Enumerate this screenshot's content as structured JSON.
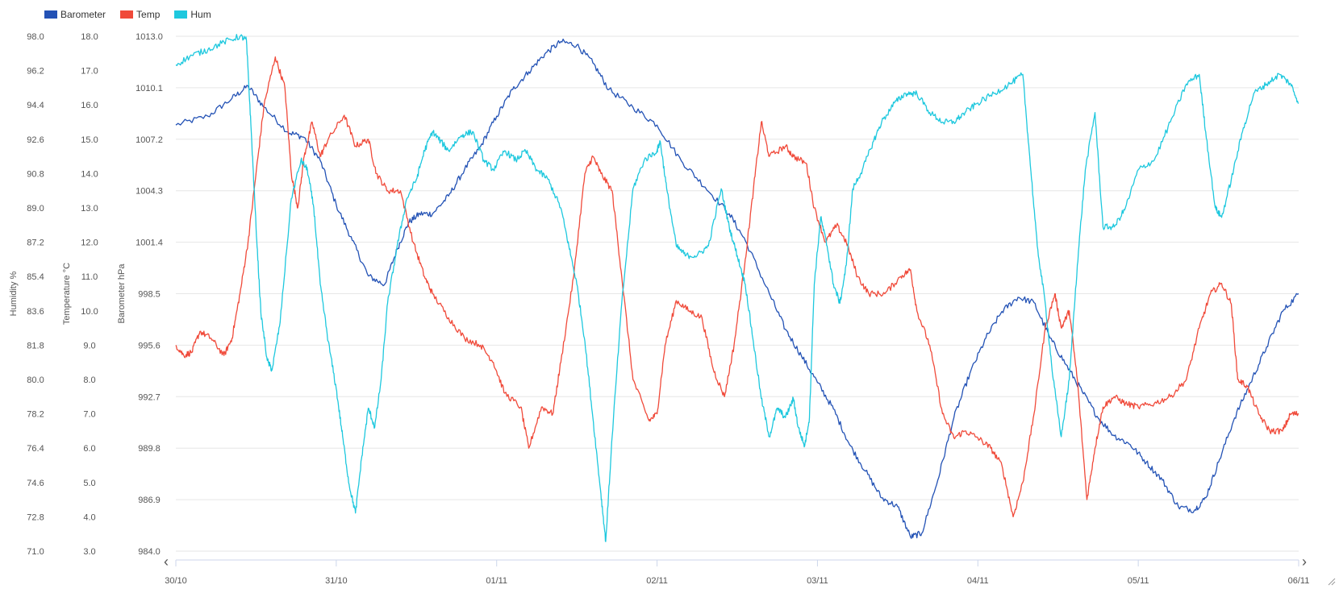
{
  "legend": [
    {
      "name": "Barometer",
      "color": "#2352b5"
    },
    {
      "name": "Temp",
      "color": "#f04a3a"
    },
    {
      "name": "Hum",
      "color": "#1ec8de"
    }
  ],
  "nav": {
    "prev_icon": "‹",
    "next_icon": "›"
  },
  "chart_data": {
    "type": "line",
    "legend_position": "top-left",
    "grid": true,
    "x_ticks": [
      "30/10",
      "31/10",
      "01/11",
      "02/11",
      "03/11",
      "04/11",
      "05/11",
      "06/11"
    ],
    "x_range_days": [
      0,
      7
    ],
    "axes": {
      "barometer": {
        "label": "Barometer hPa",
        "range": [
          984.0,
          1013.0
        ],
        "ticks": [
          "1013.0",
          "1010.1",
          "1007.2",
          "1004.3",
          "1001.4",
          "998.5",
          "995.6",
          "992.7",
          "989.8",
          "986.9",
          "984.0"
        ]
      },
      "temp": {
        "label": "Temperature °C",
        "range": [
          3.0,
          18.0
        ],
        "ticks": [
          "18.0",
          "17.0",
          "16.0",
          "15.0",
          "14.0",
          "13.0",
          "12.0",
          "11.0",
          "10.0",
          "9.0",
          "8.0",
          "7.0",
          "6.0",
          "5.0",
          "4.0",
          "3.0"
        ]
      },
      "hum": {
        "label": "Humidity %",
        "range": [
          71.0,
          98.0
        ],
        "ticks": [
          "98.0",
          "96.2",
          "94.4",
          "92.6",
          "90.8",
          "89.0",
          "87.2",
          "85.4",
          "83.6",
          "81.8",
          "80.0",
          "78.2",
          "76.4",
          "74.6",
          "72.8",
          "71.0"
        ]
      }
    },
    "series": [
      {
        "name": "Barometer",
        "axis": "barometer",
        "color": "#2352b5",
        "points": [
          [
            0,
            1008.0
          ],
          [
            0.2,
            1008.5
          ],
          [
            0.35,
            1009.5
          ],
          [
            0.45,
            1010.2
          ],
          [
            0.55,
            1009.0
          ],
          [
            0.7,
            1007.6
          ],
          [
            0.8,
            1007.3
          ],
          [
            0.9,
            1006.0
          ],
          [
            1.0,
            1003.5
          ],
          [
            1.1,
            1001.5
          ],
          [
            1.2,
            999.5
          ],
          [
            1.3,
            999.0
          ],
          [
            1.38,
            1001.0
          ],
          [
            1.45,
            1002.5
          ],
          [
            1.52,
            1003.0
          ],
          [
            1.6,
            1003.0
          ],
          [
            1.7,
            1004.0
          ],
          [
            1.8,
            1005.5
          ],
          [
            1.9,
            1006.8
          ],
          [
            2.0,
            1008.5
          ],
          [
            2.1,
            1010.0
          ],
          [
            2.2,
            1011.0
          ],
          [
            2.3,
            1012.0
          ],
          [
            2.4,
            1012.7
          ],
          [
            2.5,
            1012.5
          ],
          [
            2.6,
            1011.5
          ],
          [
            2.7,
            1010.0
          ],
          [
            2.85,
            1009.0
          ],
          [
            3.0,
            1008.0
          ],
          [
            3.15,
            1006.0
          ],
          [
            3.3,
            1004.5
          ],
          [
            3.45,
            1003.0
          ],
          [
            3.55,
            1001.5
          ],
          [
            3.7,
            998.5
          ],
          [
            3.8,
            996.5
          ],
          [
            3.9,
            995.0
          ],
          [
            4.0,
            993.5
          ],
          [
            4.1,
            992.0
          ],
          [
            4.2,
            990.0
          ],
          [
            4.3,
            988.5
          ],
          [
            4.4,
            987.0
          ],
          [
            4.5,
            986.5
          ],
          [
            4.58,
            984.8
          ],
          [
            4.65,
            985.0
          ],
          [
            4.75,
            988.0
          ],
          [
            4.85,
            991.5
          ],
          [
            4.95,
            994.0
          ],
          [
            5.05,
            996.0
          ],
          [
            5.15,
            997.5
          ],
          [
            5.25,
            998.3
          ],
          [
            5.35,
            998.0
          ],
          [
            5.45,
            996.0
          ],
          [
            5.55,
            994.5
          ],
          [
            5.65,
            993.0
          ],
          [
            5.75,
            991.5
          ],
          [
            5.85,
            990.5
          ],
          [
            5.95,
            990.0
          ],
          [
            6.05,
            989.0
          ],
          [
            6.15,
            988.0
          ],
          [
            6.25,
            986.5
          ],
          [
            6.35,
            986.3
          ],
          [
            6.42,
            987.0
          ],
          [
            6.5,
            989.0
          ],
          [
            6.6,
            991.5
          ],
          [
            6.7,
            993.5
          ],
          [
            6.8,
            995.5
          ],
          [
            6.9,
            997.5
          ],
          [
            7.0,
            998.5
          ]
        ]
      },
      {
        "name": "Temp",
        "axis": "temp",
        "color": "#f04a3a",
        "points": [
          [
            0,
            9.0
          ],
          [
            0.05,
            8.7
          ],
          [
            0.1,
            8.8
          ],
          [
            0.15,
            9.4
          ],
          [
            0.22,
            9.2
          ],
          [
            0.3,
            8.7
          ],
          [
            0.35,
            9.2
          ],
          [
            0.4,
            10.5
          ],
          [
            0.45,
            12.0
          ],
          [
            0.5,
            14.0
          ],
          [
            0.55,
            16.0
          ],
          [
            0.62,
            17.4
          ],
          [
            0.68,
            16.5
          ],
          [
            0.72,
            14.0
          ],
          [
            0.76,
            13.0
          ],
          [
            0.8,
            14.5
          ],
          [
            0.85,
            15.5
          ],
          [
            0.9,
            14.5
          ],
          [
            0.95,
            15.0
          ],
          [
            1.05,
            15.7
          ],
          [
            1.12,
            14.8
          ],
          [
            1.2,
            15.0
          ],
          [
            1.25,
            14.0
          ],
          [
            1.32,
            13.5
          ],
          [
            1.4,
            13.5
          ],
          [
            1.48,
            12.0
          ],
          [
            1.55,
            11.0
          ],
          [
            1.6,
            10.5
          ],
          [
            1.7,
            9.8
          ],
          [
            1.8,
            9.2
          ],
          [
            1.9,
            9.0
          ],
          [
            1.98,
            8.5
          ],
          [
            2.05,
            7.6
          ],
          [
            2.15,
            7.2
          ],
          [
            2.2,
            6.0
          ],
          [
            2.28,
            7.2
          ],
          [
            2.35,
            7.0
          ],
          [
            2.4,
            8.5
          ],
          [
            2.48,
            11.0
          ],
          [
            2.55,
            14.0
          ],
          [
            2.6,
            14.5
          ],
          [
            2.65,
            14.0
          ],
          [
            2.72,
            13.5
          ],
          [
            2.78,
            11.0
          ],
          [
            2.85,
            8.0
          ],
          [
            2.95,
            6.8
          ],
          [
            3.0,
            7.0
          ],
          [
            3.05,
            9.0
          ],
          [
            3.12,
            10.3
          ],
          [
            3.2,
            10.0
          ],
          [
            3.28,
            9.8
          ],
          [
            3.35,
            8.3
          ],
          [
            3.42,
            7.5
          ],
          [
            3.48,
            9.0
          ],
          [
            3.55,
            11.5
          ],
          [
            3.6,
            13.5
          ],
          [
            3.65,
            15.5
          ],
          [
            3.7,
            14.5
          ],
          [
            3.8,
            14.8
          ],
          [
            3.85,
            14.5
          ],
          [
            3.93,
            14.3
          ],
          [
            3.98,
            13.0
          ],
          [
            4.05,
            12.0
          ],
          [
            4.12,
            12.5
          ],
          [
            4.18,
            12.0
          ],
          [
            4.25,
            11.0
          ],
          [
            4.32,
            10.5
          ],
          [
            4.42,
            10.5
          ],
          [
            4.52,
            11.0
          ],
          [
            4.58,
            11.2
          ],
          [
            4.62,
            10.0
          ],
          [
            4.7,
            9.0
          ],
          [
            4.78,
            7.0
          ],
          [
            4.85,
            6.3
          ],
          [
            4.92,
            6.5
          ],
          [
            5.0,
            6.3
          ],
          [
            5.08,
            6.0
          ],
          [
            5.15,
            5.5
          ],
          [
            5.22,
            4.0
          ],
          [
            5.28,
            5.0
          ],
          [
            5.35,
            7.0
          ],
          [
            5.42,
            9.5
          ],
          [
            5.48,
            10.5
          ],
          [
            5.52,
            9.5
          ],
          [
            5.57,
            10.0
          ],
          [
            5.62,
            8.0
          ],
          [
            5.68,
            4.5
          ],
          [
            5.73,
            6.0
          ],
          [
            5.78,
            7.2
          ],
          [
            5.85,
            7.5
          ],
          [
            5.92,
            7.3
          ],
          [
            6.0,
            7.2
          ],
          [
            6.1,
            7.3
          ],
          [
            6.2,
            7.5
          ],
          [
            6.3,
            8.0
          ],
          [
            6.38,
            9.5
          ],
          [
            6.45,
            10.5
          ],
          [
            6.52,
            10.8
          ],
          [
            6.58,
            10.2
          ],
          [
            6.62,
            8.0
          ],
          [
            6.68,
            7.8
          ],
          [
            6.75,
            7.0
          ],
          [
            6.82,
            6.5
          ],
          [
            6.9,
            6.5
          ],
          [
            6.95,
            7.0
          ],
          [
            7.0,
            7.0
          ]
        ]
      },
      {
        "name": "Hum",
        "axis": "hum",
        "color": "#1ec8de",
        "points": [
          [
            0,
            96.5
          ],
          [
            0.1,
            97.0
          ],
          [
            0.2,
            97.3
          ],
          [
            0.3,
            97.7
          ],
          [
            0.4,
            98.0
          ],
          [
            0.44,
            97.8
          ],
          [
            0.47,
            93.0
          ],
          [
            0.5,
            88.0
          ],
          [
            0.53,
            83.5
          ],
          [
            0.57,
            81.0
          ],
          [
            0.6,
            80.5
          ],
          [
            0.65,
            83.0
          ],
          [
            0.72,
            89.5
          ],
          [
            0.78,
            91.5
          ],
          [
            0.82,
            91.0
          ],
          [
            0.86,
            89.0
          ],
          [
            0.9,
            85.0
          ],
          [
            0.95,
            82.0
          ],
          [
            1.0,
            79.5
          ],
          [
            1.04,
            77.0
          ],
          [
            1.08,
            74.5
          ],
          [
            1.12,
            73.0
          ],
          [
            1.16,
            76.0
          ],
          [
            1.2,
            78.5
          ],
          [
            1.24,
            77.5
          ],
          [
            1.28,
            80.0
          ],
          [
            1.32,
            84.0
          ],
          [
            1.38,
            87.0
          ],
          [
            1.44,
            89.5
          ],
          [
            1.5,
            90.5
          ],
          [
            1.55,
            92.0
          ],
          [
            1.6,
            93.0
          ],
          [
            1.65,
            92.5
          ],
          [
            1.7,
            92.0
          ],
          [
            1.78,
            92.8
          ],
          [
            1.85,
            93.0
          ],
          [
            1.92,
            91.5
          ],
          [
            1.98,
            91.0
          ],
          [
            2.05,
            92.0
          ],
          [
            2.12,
            91.5
          ],
          [
            2.18,
            92.0
          ],
          [
            2.25,
            91.0
          ],
          [
            2.32,
            90.5
          ],
          [
            2.4,
            89.0
          ],
          [
            2.45,
            87.0
          ],
          [
            2.5,
            85.0
          ],
          [
            2.55,
            82.0
          ],
          [
            2.6,
            78.0
          ],
          [
            2.65,
            74.0
          ],
          [
            2.68,
            71.5
          ],
          [
            2.72,
            77.0
          ],
          [
            2.78,
            84.0
          ],
          [
            2.85,
            90.0
          ],
          [
            2.92,
            91.5
          ],
          [
            3.0,
            92.0
          ],
          [
            3.02,
            92.5
          ],
          [
            3.06,
            90.0
          ],
          [
            3.12,
            87.0
          ],
          [
            3.18,
            86.5
          ],
          [
            3.25,
            86.5
          ],
          [
            3.32,
            87.0
          ],
          [
            3.4,
            90.0
          ],
          [
            3.45,
            88.0
          ],
          [
            3.5,
            86.5
          ],
          [
            3.55,
            85.0
          ],
          [
            3.6,
            82.0
          ],
          [
            3.65,
            79.0
          ],
          [
            3.7,
            77.0
          ],
          [
            3.75,
            78.5
          ],
          [
            3.8,
            78.0
          ],
          [
            3.85,
            79.0
          ],
          [
            3.88,
            77.5
          ],
          [
            3.92,
            76.5
          ],
          [
            3.95,
            78.0
          ],
          [
            3.98,
            85.0
          ],
          [
            4.02,
            88.5
          ],
          [
            4.06,
            87.0
          ],
          [
            4.1,
            85.0
          ],
          [
            4.14,
            84.0
          ],
          [
            4.18,
            86.0
          ],
          [
            4.22,
            90.0
          ],
          [
            4.28,
            91.0
          ],
          [
            4.35,
            92.5
          ],
          [
            4.4,
            93.5
          ],
          [
            4.48,
            94.5
          ],
          [
            4.55,
            95.0
          ],
          [
            4.62,
            95.0
          ],
          [
            4.7,
            94.0
          ],
          [
            4.78,
            93.5
          ],
          [
            4.85,
            93.5
          ],
          [
            4.92,
            94.0
          ],
          [
            5.0,
            94.5
          ],
          [
            5.1,
            95.0
          ],
          [
            5.2,
            95.5
          ],
          [
            5.28,
            96.0
          ],
          [
            5.32,
            92.0
          ],
          [
            5.37,
            87.0
          ],
          [
            5.42,
            84.0
          ],
          [
            5.47,
            80.0
          ],
          [
            5.52,
            77.0
          ],
          [
            5.57,
            80.0
          ],
          [
            5.62,
            86.0
          ],
          [
            5.67,
            91.0
          ],
          [
            5.73,
            94.0
          ],
          [
            5.78,
            88.0
          ],
          [
            5.85,
            88.0
          ],
          [
            5.92,
            89.0
          ],
          [
            6.0,
            91.0
          ],
          [
            6.1,
            91.5
          ],
          [
            6.2,
            93.5
          ],
          [
            6.3,
            95.5
          ],
          [
            6.38,
            96.0
          ],
          [
            6.42,
            93.0
          ],
          [
            6.48,
            89.0
          ],
          [
            6.52,
            88.5
          ],
          [
            6.58,
            90.5
          ],
          [
            6.65,
            93.0
          ],
          [
            6.72,
            95.0
          ],
          [
            6.8,
            95.5
          ],
          [
            6.88,
            96.0
          ],
          [
            6.95,
            95.5
          ],
          [
            7.0,
            94.5
          ]
        ]
      }
    ]
  }
}
